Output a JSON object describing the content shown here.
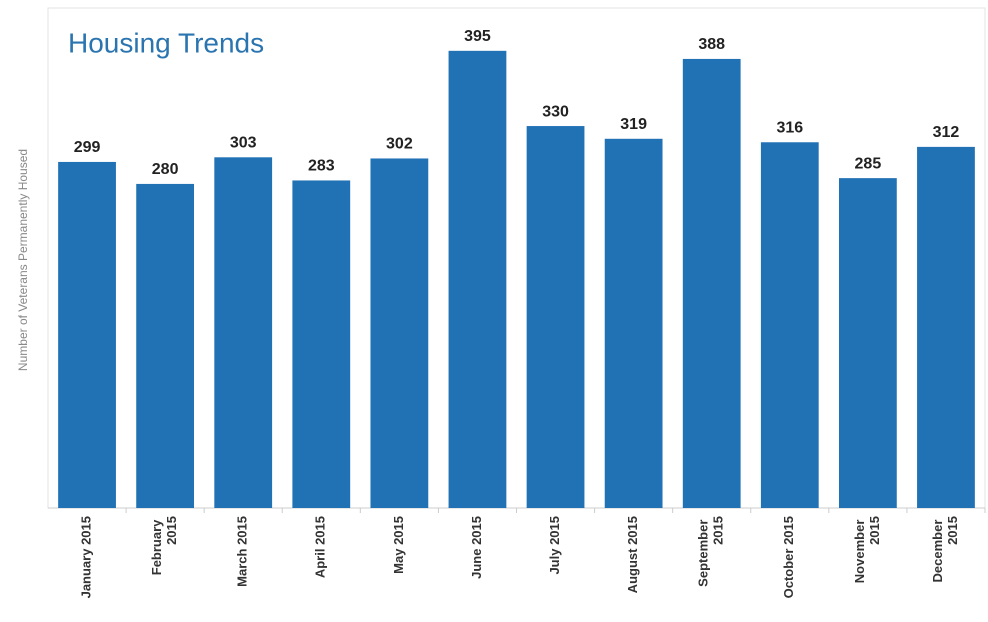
{
  "chart_data": {
    "type": "bar",
    "title": "Housing Trends",
    "y_label": "Number of Veterans Permanently Housed",
    "categories": [
      "January 2015",
      "February 2015",
      "March 2015",
      "April 2015",
      "May 2015",
      "June 2015",
      "July 2015",
      "August 2015",
      "September 2015",
      "October 2015",
      "November 2015",
      "December 2015"
    ],
    "values": [
      299,
      280,
      303,
      283,
      302,
      395,
      330,
      319,
      388,
      316,
      285,
      312
    ],
    "color": "#2171b5",
    "ylim": [
      0,
      432
    ]
  }
}
